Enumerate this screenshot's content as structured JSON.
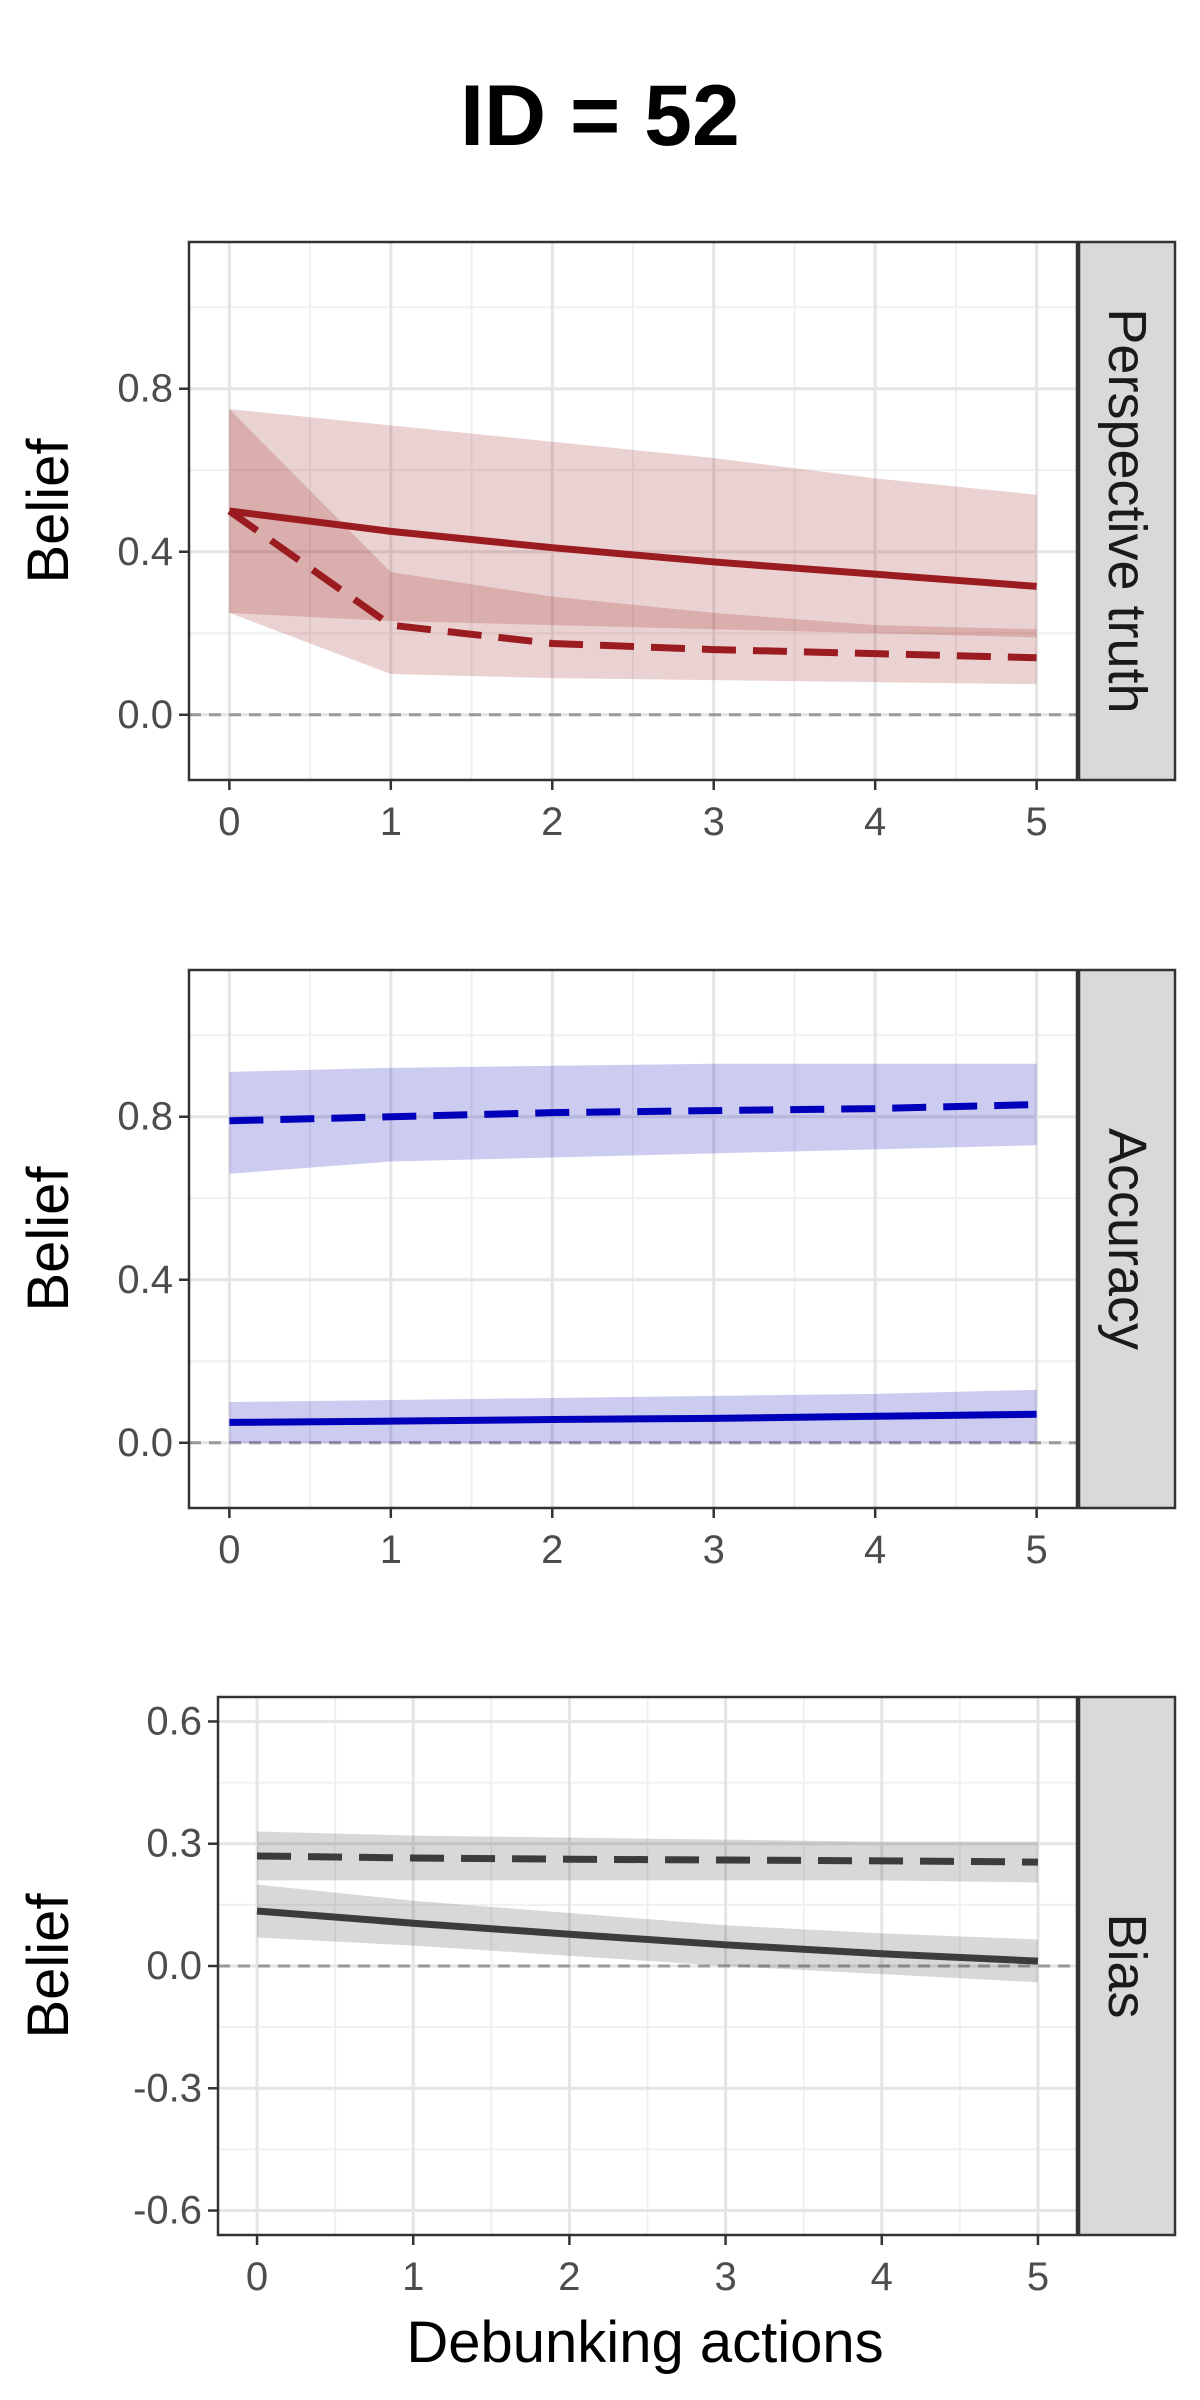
{
  "title": "ID = 52",
  "xlabel": "Debunking actions",
  "chart_data": [
    {
      "type": "line",
      "panel": "Perspective truth",
      "ylabel": "Belief",
      "xlim": [
        -0.25,
        5.25
      ],
      "ylim": [
        -0.16,
        1.16
      ],
      "xticks": [
        0,
        1,
        2,
        3,
        4,
        5
      ],
      "yticks": [
        0.0,
        0.4,
        0.8
      ],
      "ytick_labels": [
        "0.0",
        "0.4",
        "0.8"
      ],
      "reference_line_y": 0,
      "color": "#9b1c20",
      "series": [
        {
          "linestyle": "solid",
          "x": [
            0,
            1,
            2,
            3,
            4,
            5
          ],
          "values": [
            0.5,
            0.45,
            0.41,
            0.375,
            0.345,
            0.315
          ],
          "lower": [
            0.25,
            0.23,
            0.22,
            0.21,
            0.2,
            0.19
          ],
          "upper": [
            0.75,
            0.71,
            0.67,
            0.63,
            0.58,
            0.54
          ]
        },
        {
          "linestyle": "dashed",
          "x": [
            0,
            1,
            2,
            3,
            4,
            5
          ],
          "values": [
            0.5,
            0.22,
            0.175,
            0.16,
            0.15,
            0.14
          ],
          "lower": [
            0.25,
            0.1,
            0.09,
            0.085,
            0.08,
            0.075
          ],
          "upper": [
            0.75,
            0.35,
            0.29,
            0.25,
            0.22,
            0.21
          ]
        }
      ]
    },
    {
      "type": "line",
      "panel": "Accuracy",
      "ylabel": "Belief",
      "xlim": [
        -0.25,
        5.25
      ],
      "ylim": [
        -0.16,
        1.16
      ],
      "xticks": [
        0,
        1,
        2,
        3,
        4,
        5
      ],
      "yticks": [
        0.0,
        0.4,
        0.8
      ],
      "ytick_labels": [
        "0.0",
        "0.4",
        "0.8"
      ],
      "reference_line_y": 0,
      "color": "#0000bb",
      "series": [
        {
          "linestyle": "dashed",
          "x": [
            0,
            1,
            2,
            3,
            4,
            5
          ],
          "values": [
            0.79,
            0.8,
            0.81,
            0.815,
            0.82,
            0.83
          ],
          "lower": [
            0.66,
            0.69,
            0.7,
            0.71,
            0.72,
            0.73
          ],
          "upper": [
            0.91,
            0.92,
            0.925,
            0.93,
            0.93,
            0.93
          ]
        },
        {
          "linestyle": "solid",
          "x": [
            0,
            1,
            2,
            3,
            4,
            5
          ],
          "values": [
            0.05,
            0.053,
            0.057,
            0.06,
            0.065,
            0.07
          ],
          "lower": [
            0.0,
            0.0,
            0.0,
            0.0,
            0.0,
            0.0
          ],
          "upper": [
            0.1,
            0.105,
            0.11,
            0.115,
            0.12,
            0.13
          ]
        }
      ]
    },
    {
      "type": "line",
      "panel": "Bias",
      "ylabel": "Belief",
      "xlim": [
        -0.25,
        5.25
      ],
      "ylim": [
        -0.66,
        0.66
      ],
      "xticks": [
        0,
        1,
        2,
        3,
        4,
        5
      ],
      "yticks": [
        -0.6,
        -0.3,
        0.0,
        0.3,
        0.6
      ],
      "ytick_labels": [
        "-0.6",
        "-0.3",
        "0.0",
        "0.3",
        "0.6"
      ],
      "reference_line_y": 0,
      "color": "#3c3c3c",
      "series": [
        {
          "linestyle": "dashed",
          "x": [
            0,
            1,
            2,
            3,
            4,
            5
          ],
          "values": [
            0.27,
            0.265,
            0.262,
            0.26,
            0.258,
            0.255
          ],
          "lower": [
            0.21,
            0.21,
            0.21,
            0.21,
            0.21,
            0.205
          ],
          "upper": [
            0.33,
            0.32,
            0.315,
            0.31,
            0.305,
            0.305
          ]
        },
        {
          "linestyle": "solid",
          "x": [
            0,
            1,
            2,
            3,
            4,
            5
          ],
          "values": [
            0.135,
            0.105,
            0.078,
            0.052,
            0.03,
            0.012
          ],
          "lower": [
            0.07,
            0.05,
            0.025,
            0.0,
            -0.02,
            -0.04
          ],
          "upper": [
            0.2,
            0.16,
            0.13,
            0.1,
            0.08,
            0.065
          ]
        }
      ]
    }
  ]
}
